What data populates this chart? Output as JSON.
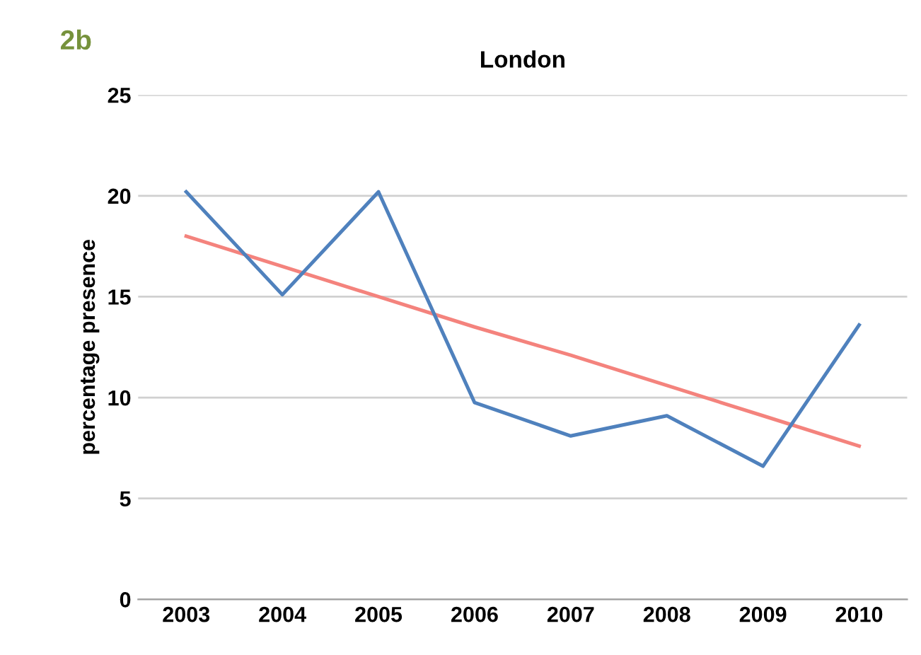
{
  "chart_data": {
    "type": "line",
    "title": "London",
    "ylabel": "percentage presence",
    "annotations": [
      "2b"
    ],
    "categories": [
      "2003",
      "2004",
      "2005",
      "2006",
      "2007",
      "2008",
      "2009",
      "2010"
    ],
    "series": [
      {
        "color": "#4f81bd",
        "values": [
          20.2,
          15.1,
          20.2,
          9.75,
          8.1,
          9.1,
          6.6,
          13.6
        ]
      },
      {
        "color": "#f4837d",
        "values": [
          18.0,
          16.5,
          15.0,
          13.5,
          12.1,
          10.6,
          9.1,
          7.6
        ]
      }
    ],
    "ylim": [
      0,
      25
    ],
    "yticks": [
      0,
      5,
      10,
      15,
      20,
      25
    ],
    "grid": "y",
    "marker": "none",
    "line_style": "solid"
  }
}
